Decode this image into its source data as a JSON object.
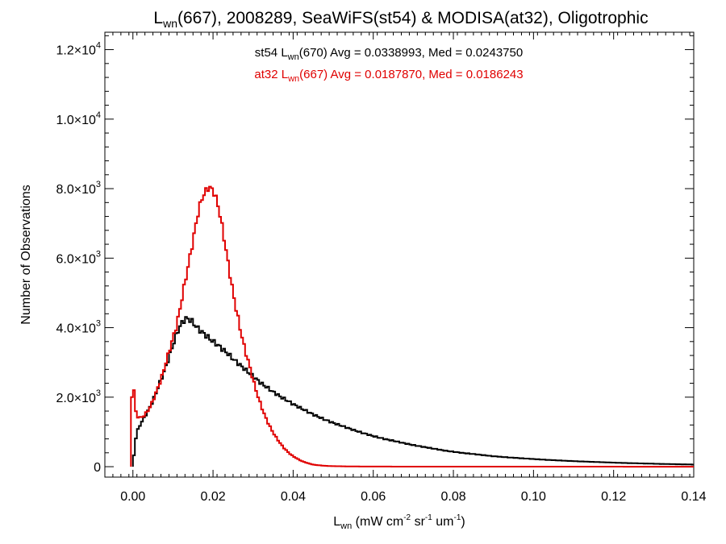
{
  "chart_data": {
    "type": "line",
    "title": {
      "prefix": "L",
      "sub": "wn",
      "rest": "(667), 2008289, SeaWiFS(st54) & MODISA(at32), Oligotrophic"
    },
    "xlabel": {
      "prefix": "L",
      "sub": "wn",
      "units_a": " (mW cm",
      "sup1": "-2",
      "units_b": " sr",
      "sup2": "-1",
      "units_c": " um",
      "sup3": "-1",
      "units_d": ")"
    },
    "ylabel": "Number of Observations",
    "xlim": [
      -0.007,
      0.14
    ],
    "ylim": [
      -300,
      12500
    ],
    "x_ticks": [
      "0.00",
      "0.02",
      "0.04",
      "0.06",
      "0.08",
      "0.10",
      "0.12",
      "0.14"
    ],
    "x_tick_values": [
      0.0,
      0.02,
      0.04,
      0.06,
      0.08,
      0.1,
      0.12,
      0.14
    ],
    "y_ticks": [
      {
        "value": 0,
        "mant": "0",
        "exp": ""
      },
      {
        "value": 2000,
        "mant": "2.0×10",
        "exp": "3"
      },
      {
        "value": 4000,
        "mant": "4.0×10",
        "exp": "3"
      },
      {
        "value": 6000,
        "mant": "6.0×10",
        "exp": "3"
      },
      {
        "value": 8000,
        "mant": "8.0×10",
        "exp": "3"
      },
      {
        "value": 10000,
        "mant": "1.0×10",
        "exp": "4"
      },
      {
        "value": 12000,
        "mant": "1.2×10",
        "exp": "4"
      }
    ],
    "grid": false,
    "legend": [
      {
        "name_a": "st54 L",
        "name_sub": "wn",
        "name_b": "(670) Avg = 0.0338993, Med = 0.0243750",
        "color": "#000000"
      },
      {
        "name_a": "at32 L",
        "name_sub": "wn",
        "name_b": "(667) Avg = 0.0187870, Med = 0.0186243",
        "color": "#e00000"
      }
    ],
    "series": [
      {
        "color": "#000000",
        "points": [
          [
            0.0,
            0
          ],
          [
            0.0005,
            650
          ],
          [
            0.001,
            1000
          ],
          [
            0.002,
            1250
          ],
          [
            0.003,
            1450
          ],
          [
            0.004,
            1650
          ],
          [
            0.005,
            1900
          ],
          [
            0.006,
            2200
          ],
          [
            0.007,
            2500
          ],
          [
            0.008,
            2800
          ],
          [
            0.009,
            3150
          ],
          [
            0.01,
            3500
          ],
          [
            0.011,
            3850
          ],
          [
            0.012,
            4100
          ],
          [
            0.013,
            4250
          ],
          [
            0.014,
            4250
          ],
          [
            0.015,
            4150
          ],
          [
            0.016,
            4000
          ],
          [
            0.017,
            3900
          ],
          [
            0.018,
            3800
          ],
          [
            0.019,
            3700
          ],
          [
            0.02,
            3600
          ],
          [
            0.021,
            3520
          ],
          [
            0.022,
            3420
          ],
          [
            0.023,
            3320
          ],
          [
            0.024,
            3220
          ],
          [
            0.025,
            3100
          ],
          [
            0.026,
            3000
          ],
          [
            0.027,
            2900
          ],
          [
            0.028,
            2800
          ],
          [
            0.029,
            2700
          ],
          [
            0.03,
            2600
          ],
          [
            0.031,
            2500
          ],
          [
            0.032,
            2400
          ],
          [
            0.033,
            2320
          ],
          [
            0.034,
            2240
          ],
          [
            0.035,
            2150
          ],
          [
            0.036,
            2080
          ],
          [
            0.037,
            2000
          ],
          [
            0.038,
            1940
          ],
          [
            0.039,
            1870
          ],
          [
            0.04,
            1800
          ],
          [
            0.042,
            1680
          ],
          [
            0.044,
            1560
          ],
          [
            0.046,
            1450
          ],
          [
            0.048,
            1350
          ],
          [
            0.05,
            1260
          ],
          [
            0.052,
            1180
          ],
          [
            0.054,
            1100
          ],
          [
            0.056,
            1020
          ],
          [
            0.058,
            950
          ],
          [
            0.06,
            880
          ],
          [
            0.062,
            820
          ],
          [
            0.064,
            770
          ],
          [
            0.066,
            720
          ],
          [
            0.068,
            670
          ],
          [
            0.07,
            620
          ],
          [
            0.072,
            580
          ],
          [
            0.074,
            540
          ],
          [
            0.076,
            500
          ],
          [
            0.078,
            460
          ],
          [
            0.08,
            430
          ],
          [
            0.082,
            400
          ],
          [
            0.084,
            375
          ],
          [
            0.086,
            350
          ],
          [
            0.088,
            325
          ],
          [
            0.09,
            300
          ],
          [
            0.092,
            282
          ],
          [
            0.094,
            265
          ],
          [
            0.096,
            250
          ],
          [
            0.098,
            235
          ],
          [
            0.1,
            220
          ],
          [
            0.103,
            200
          ],
          [
            0.106,
            182
          ],
          [
            0.109,
            165
          ],
          [
            0.112,
            150
          ],
          [
            0.115,
            138
          ],
          [
            0.118,
            125
          ],
          [
            0.121,
            113
          ],
          [
            0.124,
            103
          ],
          [
            0.127,
            93
          ],
          [
            0.13,
            85
          ],
          [
            0.133,
            77
          ],
          [
            0.136,
            70
          ],
          [
            0.139,
            64
          ],
          [
            0.14,
            60
          ]
        ]
      },
      {
        "color": "#e00000",
        "points": [
          [
            -0.0005,
            0
          ],
          [
            -0.0003,
            1900
          ],
          [
            0.0,
            2700
          ],
          [
            0.0005,
            1700
          ],
          [
            0.001,
            1450
          ],
          [
            0.002,
            1400
          ],
          [
            0.003,
            1500
          ],
          [
            0.004,
            1650
          ],
          [
            0.005,
            1900
          ],
          [
            0.006,
            2200
          ],
          [
            0.007,
            2500
          ],
          [
            0.008,
            2900
          ],
          [
            0.009,
            3300
          ],
          [
            0.01,
            3700
          ],
          [
            0.011,
            4100
          ],
          [
            0.012,
            4700
          ],
          [
            0.013,
            5300
          ],
          [
            0.014,
            5900
          ],
          [
            0.015,
            6500
          ],
          [
            0.016,
            7150
          ],
          [
            0.017,
            7650
          ],
          [
            0.018,
            7900
          ],
          [
            0.019,
            8050
          ],
          [
            0.02,
            7950
          ],
          [
            0.021,
            7650
          ],
          [
            0.022,
            7100
          ],
          [
            0.023,
            6400
          ],
          [
            0.024,
            5700
          ],
          [
            0.025,
            5000
          ],
          [
            0.026,
            4400
          ],
          [
            0.027,
            3850
          ],
          [
            0.028,
            3350
          ],
          [
            0.029,
            2950
          ],
          [
            0.03,
            2500
          ],
          [
            0.031,
            2100
          ],
          [
            0.032,
            1750
          ],
          [
            0.033,
            1450
          ],
          [
            0.034,
            1200
          ],
          [
            0.035,
            980
          ],
          [
            0.036,
            800
          ],
          [
            0.037,
            640
          ],
          [
            0.038,
            500
          ],
          [
            0.039,
            390
          ],
          [
            0.04,
            300
          ],
          [
            0.041,
            230
          ],
          [
            0.042,
            170
          ],
          [
            0.043,
            125
          ],
          [
            0.044,
            90
          ],
          [
            0.045,
            60
          ],
          [
            0.046,
            45
          ],
          [
            0.048,
            25
          ],
          [
            0.05,
            15
          ],
          [
            0.055,
            6
          ],
          [
            0.06,
            3
          ],
          [
            0.08,
            1
          ],
          [
            0.14,
            0
          ]
        ]
      }
    ]
  }
}
